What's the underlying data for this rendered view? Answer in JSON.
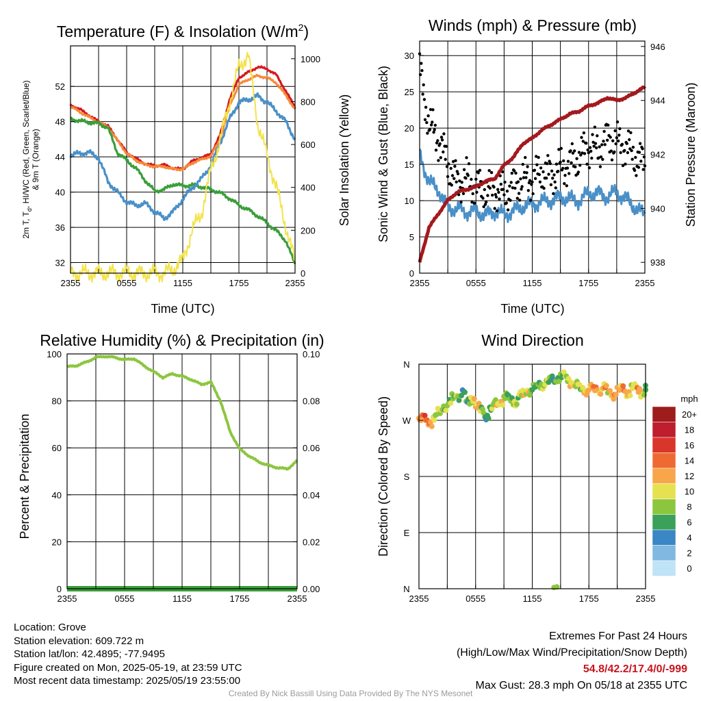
{
  "chart_data": [
    {
      "type": "line",
      "title": "Temperature (F) & Insolation (W/m",
      "title_sup": "2",
      "title_close": ")",
      "xlabel": "Time (UTC)",
      "ylabel_line1": "2m T, T",
      "ylabel_sub": "d",
      "ylabel_line1b": ", HI/WC (Red, Green, Scarlet/Blue)",
      "ylabel_line2": "& 9m T (Orange)",
      "y2label": "Solar Insolation (Yellow)",
      "xticks": [
        "2355",
        "0555",
        "1155",
        "1755",
        "2355"
      ],
      "ylim": [
        30.8,
        56.6
      ],
      "yticks": [
        "32",
        "36",
        "40",
        "44",
        "48",
        "52"
      ],
      "y2lim": [
        0,
        1060
      ],
      "y2ticks": [
        "0",
        "200",
        "400",
        "600",
        "800",
        "1000"
      ],
      "x_hours": [
        0,
        1,
        2,
        3,
        4,
        5,
        6,
        7,
        8,
        9,
        10,
        11,
        12,
        13,
        14,
        15,
        16,
        17,
        18,
        19,
        20,
        21,
        22,
        23,
        24
      ],
      "series": [
        {
          "color": "#d7191c",
          "values": [
            49.9,
            49.4,
            48.7,
            48.0,
            47.5,
            46.0,
            44.5,
            43.8,
            43.2,
            43.0,
            43.1,
            42.7,
            42.6,
            43.5,
            43.9,
            44.3,
            46.5,
            50.5,
            53.0,
            53.6,
            54.2,
            54.0,
            53.3,
            51.5,
            49.6
          ]
        },
        {
          "color": "#f58b3a",
          "values": [
            49.7,
            49.1,
            48.5,
            47.9,
            47.4,
            45.9,
            44.4,
            43.6,
            43.1,
            42.9,
            42.9,
            42.6,
            42.6,
            43.3,
            43.7,
            44.1,
            46.0,
            49.8,
            52.2,
            52.8,
            53.2,
            53.0,
            52.4,
            51.0,
            49.4
          ]
        },
        {
          "color": "#3a9e3a",
          "values": [
            48.3,
            48.1,
            47.9,
            47.8,
            47.3,
            44.5,
            43.6,
            42.7,
            41.3,
            40.1,
            40.3,
            40.9,
            40.7,
            40.8,
            40.6,
            40.3,
            39.9,
            39.3,
            38.5,
            38.0,
            37.3,
            36.5,
            35.6,
            34.5,
            31.8
          ]
        },
        {
          "color": "#4a90c8",
          "values": [
            44.2,
            44.4,
            44.5,
            43.9,
            41.2,
            40.0,
            38.9,
            38.5,
            38.7,
            37.8,
            37.0,
            37.8,
            39.2,
            40.5,
            41.5,
            43.0,
            45.6,
            48.3,
            50.2,
            50.5,
            50.9,
            50.2,
            49.2,
            48.0,
            46.0
          ]
        },
        {
          "color": "#f3e34c",
          "axis": "y2",
          "values": [
            0,
            0,
            0,
            0,
            0,
            0,
            0,
            0,
            0,
            0,
            0,
            20,
            60,
            200,
            280,
            480,
            620,
            800,
            960,
            1020,
            700,
            550,
            400,
            220,
            50
          ]
        }
      ]
    },
    {
      "type": "line",
      "title": "Winds (mph) & Pressure (mb)",
      "xlabel": "Time (UTC)",
      "ylabel": "Sonic Wind & Gust (Blue, Black)",
      "y2label": "Station Pressure (Maroon)",
      "xticks": [
        "2355",
        "0555",
        "1155",
        "1755",
        "2355"
      ],
      "ylim": [
        0,
        32
      ],
      "yticks": [
        "0",
        "5",
        "10",
        "15",
        "20",
        "25",
        "30"
      ],
      "y2lim": [
        937.6,
        946.2
      ],
      "y2ticks": [
        "938",
        "940",
        "942",
        "944",
        "946"
      ],
      "x_hours": [
        0,
        1,
        2,
        3,
        4,
        5,
        6,
        7,
        8,
        9,
        10,
        11,
        12,
        13,
        14,
        15,
        16,
        17,
        18,
        19,
        20,
        21,
        22,
        23,
        24
      ],
      "series": [
        {
          "color": "#4a90c8",
          "values": [
            16.5,
            12.5,
            11.5,
            9.0,
            8.8,
            8.5,
            8.5,
            8.0,
            8.5,
            8.0,
            8.6,
            9.2,
            9.5,
            9.8,
            10.0,
            10.5,
            10.2,
            10.0,
            11.0,
            11.0,
            10.5,
            11.2,
            10.2,
            9.0,
            8.0
          ]
        },
        {
          "color": "#000000",
          "style": "points",
          "values": [
            28.0,
            20.5,
            18.5,
            15.0,
            12.5,
            13.0,
            12.0,
            11.5,
            11.5,
            11.0,
            12.0,
            13.0,
            13.0,
            14.0,
            13.5,
            14.5,
            15.0,
            16.0,
            17.5,
            17.0,
            18.5,
            18.0,
            17.5,
            16.0,
            15.0
          ]
        },
        {
          "color": "#a31a1e",
          "axis": "y2",
          "values": [
            938.0,
            939.3,
            939.8,
            940.3,
            940.6,
            940.7,
            940.8,
            941.0,
            941.1,
            941.6,
            941.9,
            942.4,
            942.6,
            942.9,
            943.1,
            943.3,
            943.5,
            943.6,
            943.8,
            943.9,
            944.1,
            944.0,
            944.1,
            944.3,
            944.5
          ]
        }
      ]
    },
    {
      "type": "line",
      "title": "Relative Humidity (%) & Precipitation (in)",
      "ylabel": "Percent & Precipitation",
      "xticks": [
        "2355",
        "0555",
        "1155",
        "1755",
        "2355"
      ],
      "ylim": [
        0,
        100
      ],
      "yticks": [
        "0",
        "20",
        "40",
        "60",
        "80",
        "100"
      ],
      "y2lim": [
        0,
        0.1
      ],
      "y2ticks": [
        "0.00",
        "0.02",
        "0.04",
        "0.06",
        "0.08",
        "0.10"
      ],
      "x_hours": [
        0,
        1,
        2,
        3,
        4,
        5,
        6,
        7,
        8,
        9,
        10,
        11,
        12,
        13,
        14,
        15,
        16,
        17,
        18,
        19,
        20,
        21,
        22,
        23,
        24
      ],
      "series": [
        {
          "color": "#8cc63f",
          "values": [
            94.5,
            95.0,
            96.5,
            98.5,
            99.0,
            98.5,
            97.5,
            98.0,
            95.0,
            92.5,
            90.0,
            91.5,
            90.5,
            89.0,
            87.0,
            88.0,
            80.0,
            67.0,
            59.5,
            56.5,
            54.0,
            52.5,
            51.5,
            51.0,
            54.5
          ]
        },
        {
          "color": "#3a9e3a",
          "axis": "y2",
          "values": [
            0,
            0,
            0,
            0,
            0,
            0,
            0,
            0,
            0,
            0,
            0,
            0,
            0,
            0,
            0,
            0,
            0,
            0,
            0,
            0,
            0,
            0,
            0,
            0,
            0
          ]
        }
      ]
    },
    {
      "type": "scatter",
      "title": "Wind Direction",
      "ylabel": "Direction (Colored By Speed)",
      "xticks": [
        "2355",
        "0555",
        "1155",
        "1755",
        "2355"
      ],
      "yticks": [
        "N",
        "E",
        "S",
        "W",
        "N"
      ],
      "ylim": [
        0,
        360
      ],
      "colorbar_title": "mph",
      "colorbar_labels": [
        "20+",
        "18",
        "16",
        "14",
        "12",
        "10",
        "8",
        "6",
        "4",
        "2",
        "0"
      ],
      "colorbar_colors": [
        "#9e1c1c",
        "#be1e2d",
        "#d9362b",
        "#ef6a32",
        "#f9a64b",
        "#e6e151",
        "#8cc63f",
        "#3aa05a",
        "#3b86c4",
        "#7fb8e0",
        "#bfe3f7"
      ],
      "hours": [
        0,
        0.5,
        1,
        1.5,
        2,
        2.5,
        3,
        3.5,
        4,
        4.5,
        5,
        5.5,
        6,
        6.5,
        7,
        7.5,
        8,
        8.5,
        9,
        9.5,
        10,
        10.5,
        11,
        11.5,
        12,
        12.5,
        13,
        13.5,
        14,
        14.5,
        15,
        15.5,
        16,
        16.5,
        17,
        17.5,
        18,
        18.5,
        19,
        19.5,
        20,
        20.5,
        21,
        21.5,
        22,
        22.5,
        23,
        23.5,
        24,
        14.3,
        14.6
      ],
      "directions": [
        272,
        270,
        268,
        275,
        282,
        292,
        298,
        305,
        310,
        315,
        298,
        305,
        292,
        285,
        278,
        288,
        296,
        302,
        308,
        302,
        300,
        310,
        312,
        318,
        322,
        326,
        328,
        332,
        335,
        338,
        340,
        336,
        332,
        325,
        320,
        318,
        322,
        320,
        318,
        322,
        315,
        312,
        318,
        320,
        315,
        322,
        320,
        315,
        318,
        2,
        3
      ],
      "speeds": [
        14,
        13,
        12,
        9,
        11,
        8,
        7,
        6,
        8,
        6,
        7,
        9,
        10,
        8,
        7,
        8,
        9,
        10,
        8,
        9,
        10,
        8,
        9,
        10,
        8,
        7,
        8,
        7,
        6,
        8,
        7,
        8,
        9,
        10,
        9,
        11,
        10,
        12,
        11,
        13,
        10,
        12,
        11,
        14,
        12,
        10,
        11,
        9,
        8,
        8,
        7
      ]
    }
  ],
  "info": {
    "location": "Location: Grove",
    "elevation": "Station elevation: 609.722 m",
    "latlon": "Station lat/lon: 42.4895; -77.9495",
    "created": "Figure created on Mon, 2025-05-19, at 23:59 UTC",
    "recent": "Most recent data timestamp: 2025/05/19 23:55:00"
  },
  "extremes": {
    "title": "Extremes For Past 24 Hours",
    "subtitle": "(High/Low/Max Wind/Precipitation/Snow Depth)",
    "values": "54.8/42.2/17.4/0/-999",
    "gust": "Max Gust: 28.3 mph On 05/18 at 2355 UTC"
  },
  "credit": "Created By Nick Bassill Using Data Provided By The NYS Mesonet"
}
